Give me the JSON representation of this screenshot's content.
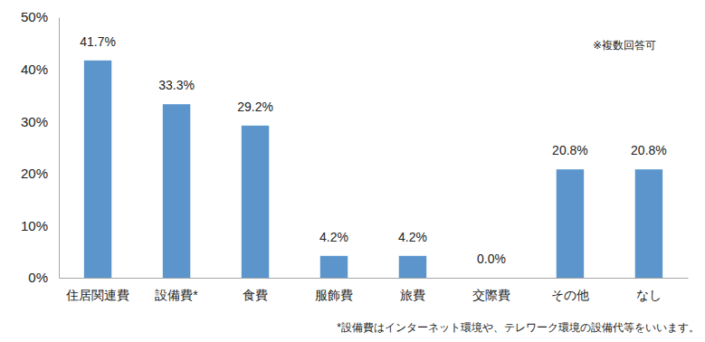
{
  "chart_data": {
    "type": "bar",
    "categories": [
      "住居関連費",
      "設備費*",
      "食費",
      "服飾費",
      "旅費",
      "交際費",
      "その他",
      "なし"
    ],
    "values": [
      41.7,
      33.3,
      29.2,
      4.2,
      4.2,
      0.0,
      20.8,
      20.8
    ],
    "value_labels": [
      "41.7%",
      "33.3%",
      "29.2%",
      "4.2%",
      "4.2%",
      "0.0%",
      "20.8%",
      "20.8%"
    ],
    "color": "#5b95cc",
    "ylim": [
      0,
      50
    ],
    "yticks": [
      {
        "value": 0,
        "label": "0%"
      },
      {
        "value": 10,
        "label": "10%"
      },
      {
        "value": 20,
        "label": "20%"
      },
      {
        "value": 30,
        "label": "30%"
      },
      {
        "value": 40,
        "label": "40%"
      },
      {
        "value": 50,
        "label": "50%"
      }
    ],
    "grid": false,
    "data_labels": true,
    "annotations": [
      "※複数回答可",
      "*設備費はインターネット環境や、テレワーク環境の設備代等をいいます。"
    ]
  }
}
